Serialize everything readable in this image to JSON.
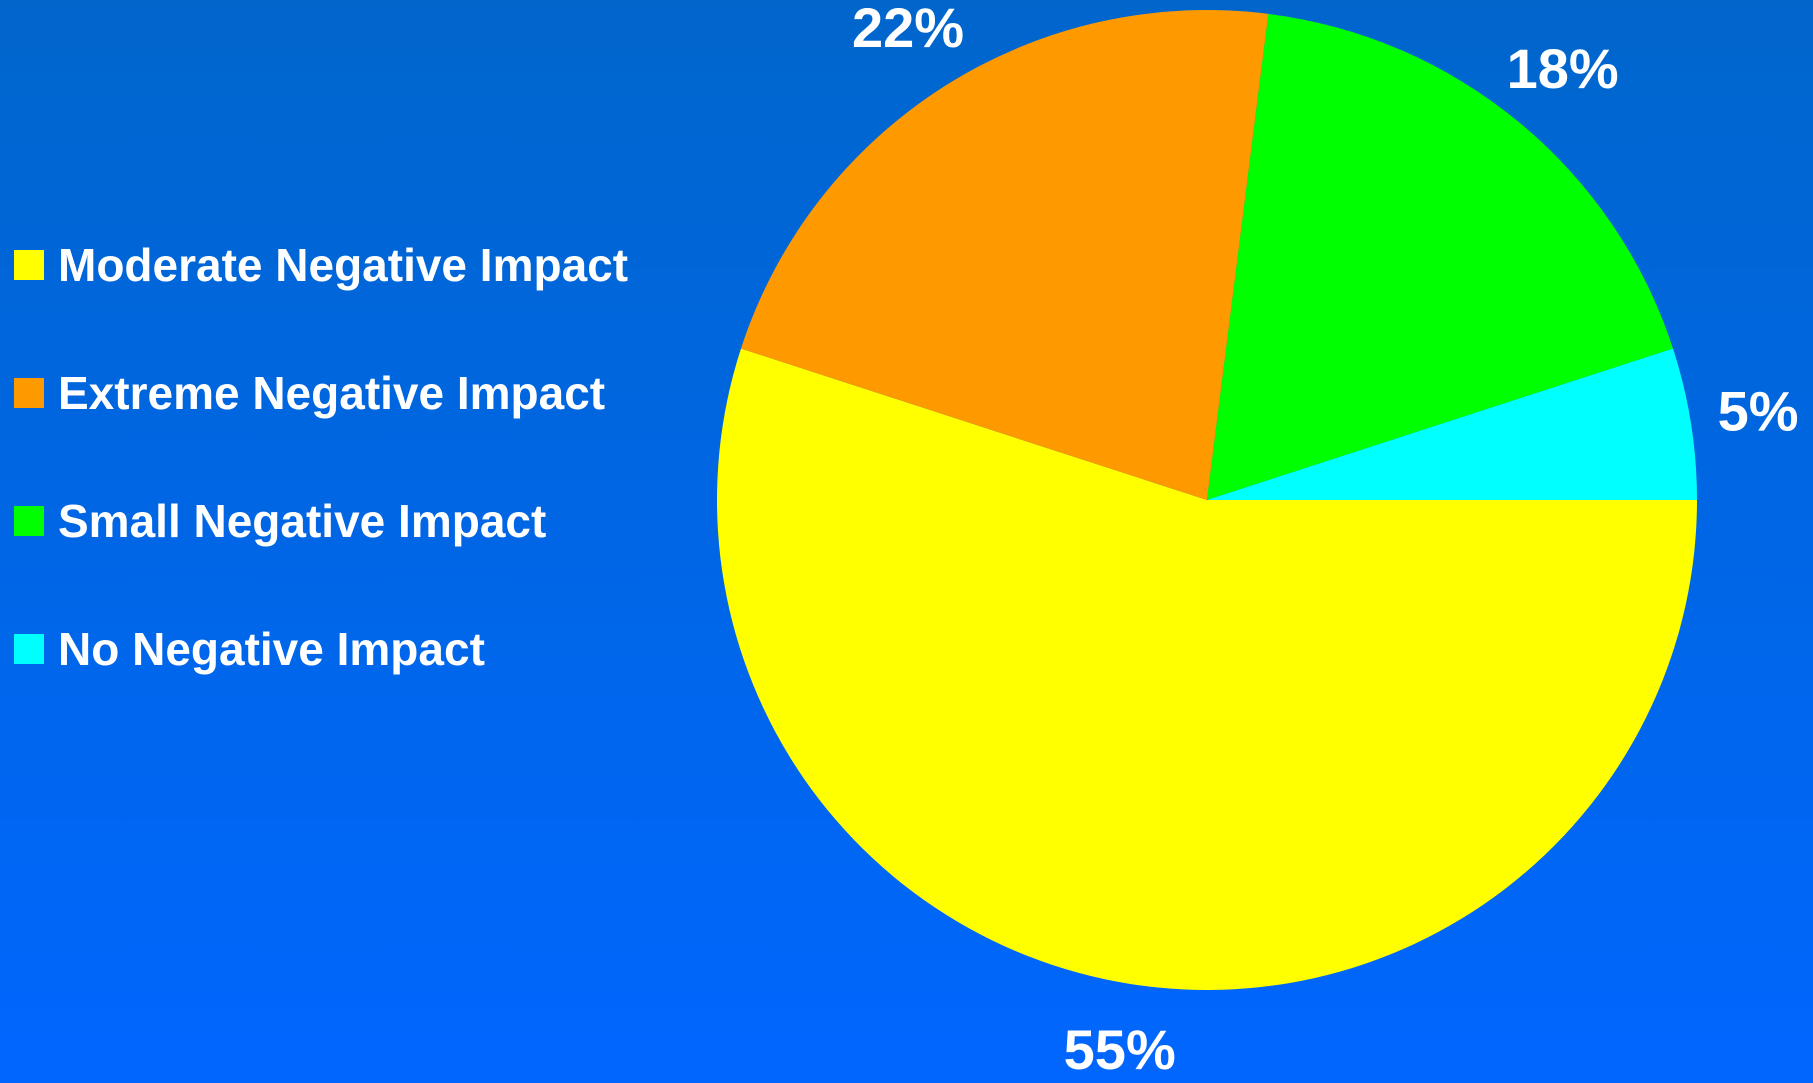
{
  "chart_data": {
    "type": "pie",
    "slices": [
      {
        "name": "Moderate Negative Impact",
        "value": 55,
        "label": "55%",
        "color": "#ffff00"
      },
      {
        "name": "Extreme Negative Impact",
        "value": 22,
        "label": "22%",
        "color": "#ff9900"
      },
      {
        "name": "Small Negative Impact",
        "value": 18,
        "label": "18%",
        "color": "#00ff00"
      },
      {
        "name": "No Negative Impact",
        "value": 5,
        "label": "5%",
        "color": "#00ffff"
      }
    ],
    "legend_position": "left"
  },
  "colors": {
    "background_top": "#0066cc",
    "background_bottom": "#0066ff",
    "text": "#ffffff"
  }
}
